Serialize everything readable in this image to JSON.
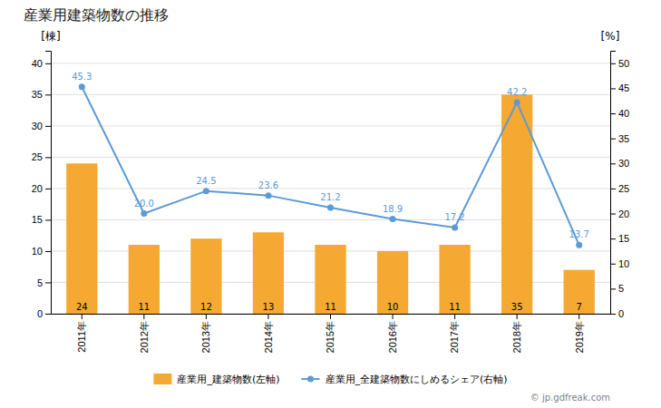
{
  "chart_data": {
    "type": "bar",
    "title": "産業用建築物数の推移",
    "categories": [
      "2011年",
      "2012年",
      "2013年",
      "2014年",
      "2015年",
      "2016年",
      "2017年",
      "2018年",
      "2019年"
    ],
    "series": [
      {
        "name": "産業用_建築物数(左軸)",
        "type": "bar",
        "color": "#f5a832",
        "values": [
          24,
          11,
          12,
          13,
          11,
          10,
          11,
          35,
          7
        ]
      },
      {
        "name": "産業用_全建築物数にしめるシェア(右軸)",
        "type": "line",
        "color": "#5b9bd5",
        "marker": "circle",
        "axis": "y2",
        "values": [
          45.3,
          20.0,
          24.5,
          23.6,
          21.2,
          18.9,
          17.2,
          42.2,
          13.7
        ],
        "value_labels": [
          "45.3",
          "20.0",
          "24.5",
          "23.6",
          "21.2",
          "18.9",
          "17.2",
          "42.2",
          "13.7"
        ]
      }
    ],
    "ylabel": "[棟]",
    "y2label": "[%]",
    "ylim": [
      0,
      42
    ],
    "yticks": [
      0,
      5,
      10,
      15,
      20,
      25,
      30,
      35,
      40
    ],
    "y2lim": [
      0,
      52.5
    ],
    "y2ticks": [
      0,
      5,
      10,
      15,
      20,
      25,
      30,
      35,
      40,
      45,
      50
    ],
    "grid": true,
    "legend": "bottom",
    "data_labels": true,
    "annotations": [
      "© jp.gdfreak.com"
    ]
  }
}
